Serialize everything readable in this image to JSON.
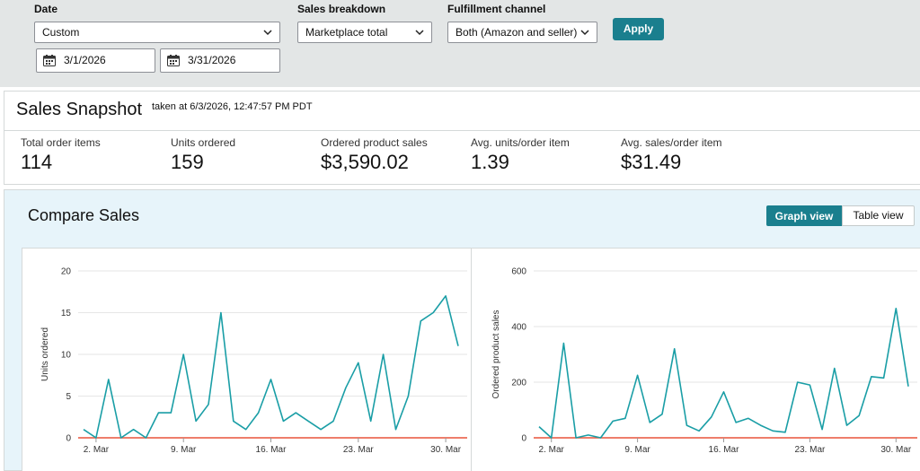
{
  "filters": {
    "date_label": "Date",
    "date_value": "Custom",
    "start_date": "3/1/2026",
    "end_date": "3/31/2026",
    "breakdown_label": "Sales breakdown",
    "breakdown_value": "Marketplace total",
    "fulfillment_label": "Fulfillment channel",
    "fulfillment_value": "Both (Amazon and seller)",
    "apply_label": "Apply"
  },
  "snapshot": {
    "title": "Sales Snapshot",
    "taken_at": "taken at 6/3/2026, 12:47:57 PM PDT",
    "metrics": [
      {
        "label": "Total order items",
        "value": "114"
      },
      {
        "label": "Units ordered",
        "value": "159"
      },
      {
        "label": "Ordered product sales",
        "value": "$3,590.02"
      },
      {
        "label": "Avg. units/order item",
        "value": "1.39"
      },
      {
        "label": "Avg. sales/order item",
        "value": "$31.49"
      }
    ]
  },
  "compare": {
    "title": "Compare Sales",
    "graph_view_label": "Graph view",
    "table_view_label": "Table view"
  },
  "colors": {
    "accent": "#1a7f8e",
    "series_line": "#1a9ea6",
    "baseline": "#e8533a"
  },
  "chart_data": [
    {
      "type": "line",
      "ylabel": "Units ordered",
      "ylim": [
        0,
        20
      ],
      "yticks": [
        0,
        5,
        10,
        15,
        20
      ],
      "x": [
        "1. Mar",
        "2. Mar",
        "3. Mar",
        "4. Mar",
        "5. Mar",
        "6. Mar",
        "7. Mar",
        "8. Mar",
        "9. Mar",
        "10. Mar",
        "11. Mar",
        "12. Mar",
        "13. Mar",
        "14. Mar",
        "15. Mar",
        "16. Mar",
        "17. Mar",
        "18. Mar",
        "19. Mar",
        "20. Mar",
        "21. Mar",
        "22. Mar",
        "23. Mar",
        "24. Mar",
        "25. Mar",
        "26. Mar",
        "27. Mar",
        "28. Mar",
        "29. Mar",
        "30. Mar",
        "31. Mar"
      ],
      "xtick_labels": [
        {
          "index": 1,
          "label": "2. Mar"
        },
        {
          "index": 8,
          "label": "9. Mar"
        },
        {
          "index": 15,
          "label": "16. Mar"
        },
        {
          "index": 22,
          "label": "23. Mar"
        },
        {
          "index": 29,
          "label": "30. Mar"
        }
      ],
      "values": [
        1,
        0,
        7,
        0,
        1,
        0,
        3,
        3,
        10,
        2,
        4,
        15,
        2,
        1,
        3,
        7,
        2,
        3,
        2,
        1,
        2,
        6,
        9,
        2,
        10,
        1,
        5,
        14,
        15,
        17,
        11
      ],
      "grid": true
    },
    {
      "type": "line",
      "ylabel": "Ordered product sales",
      "ylim": [
        0,
        600
      ],
      "yticks": [
        0,
        200,
        400,
        600
      ],
      "x": [
        "1. Mar",
        "2. Mar",
        "3. Mar",
        "4. Mar",
        "5. Mar",
        "6. Mar",
        "7. Mar",
        "8. Mar",
        "9. Mar",
        "10. Mar",
        "11. Mar",
        "12. Mar",
        "13. Mar",
        "14. Mar",
        "15. Mar",
        "16. Mar",
        "17. Mar",
        "18. Mar",
        "19. Mar",
        "20. Mar",
        "21. Mar",
        "22. Mar",
        "23. Mar",
        "24. Mar",
        "25. Mar",
        "26. Mar",
        "27. Mar",
        "28. Mar",
        "29. Mar",
        "30. Mar",
        "31. Mar"
      ],
      "xtick_labels": [
        {
          "index": 1,
          "label": "2. Mar"
        },
        {
          "index": 8,
          "label": "9. Mar"
        },
        {
          "index": 15,
          "label": "16. Mar"
        },
        {
          "index": 22,
          "label": "23. Mar"
        },
        {
          "index": 29,
          "label": "30. Mar"
        }
      ],
      "values": [
        40,
        0,
        340,
        0,
        10,
        0,
        60,
        70,
        225,
        55,
        85,
        320,
        45,
        25,
        75,
        165,
        55,
        70,
        45,
        25,
        20,
        200,
        190,
        30,
        250,
        45,
        80,
        220,
        215,
        465,
        185
      ],
      "grid": true
    }
  ]
}
